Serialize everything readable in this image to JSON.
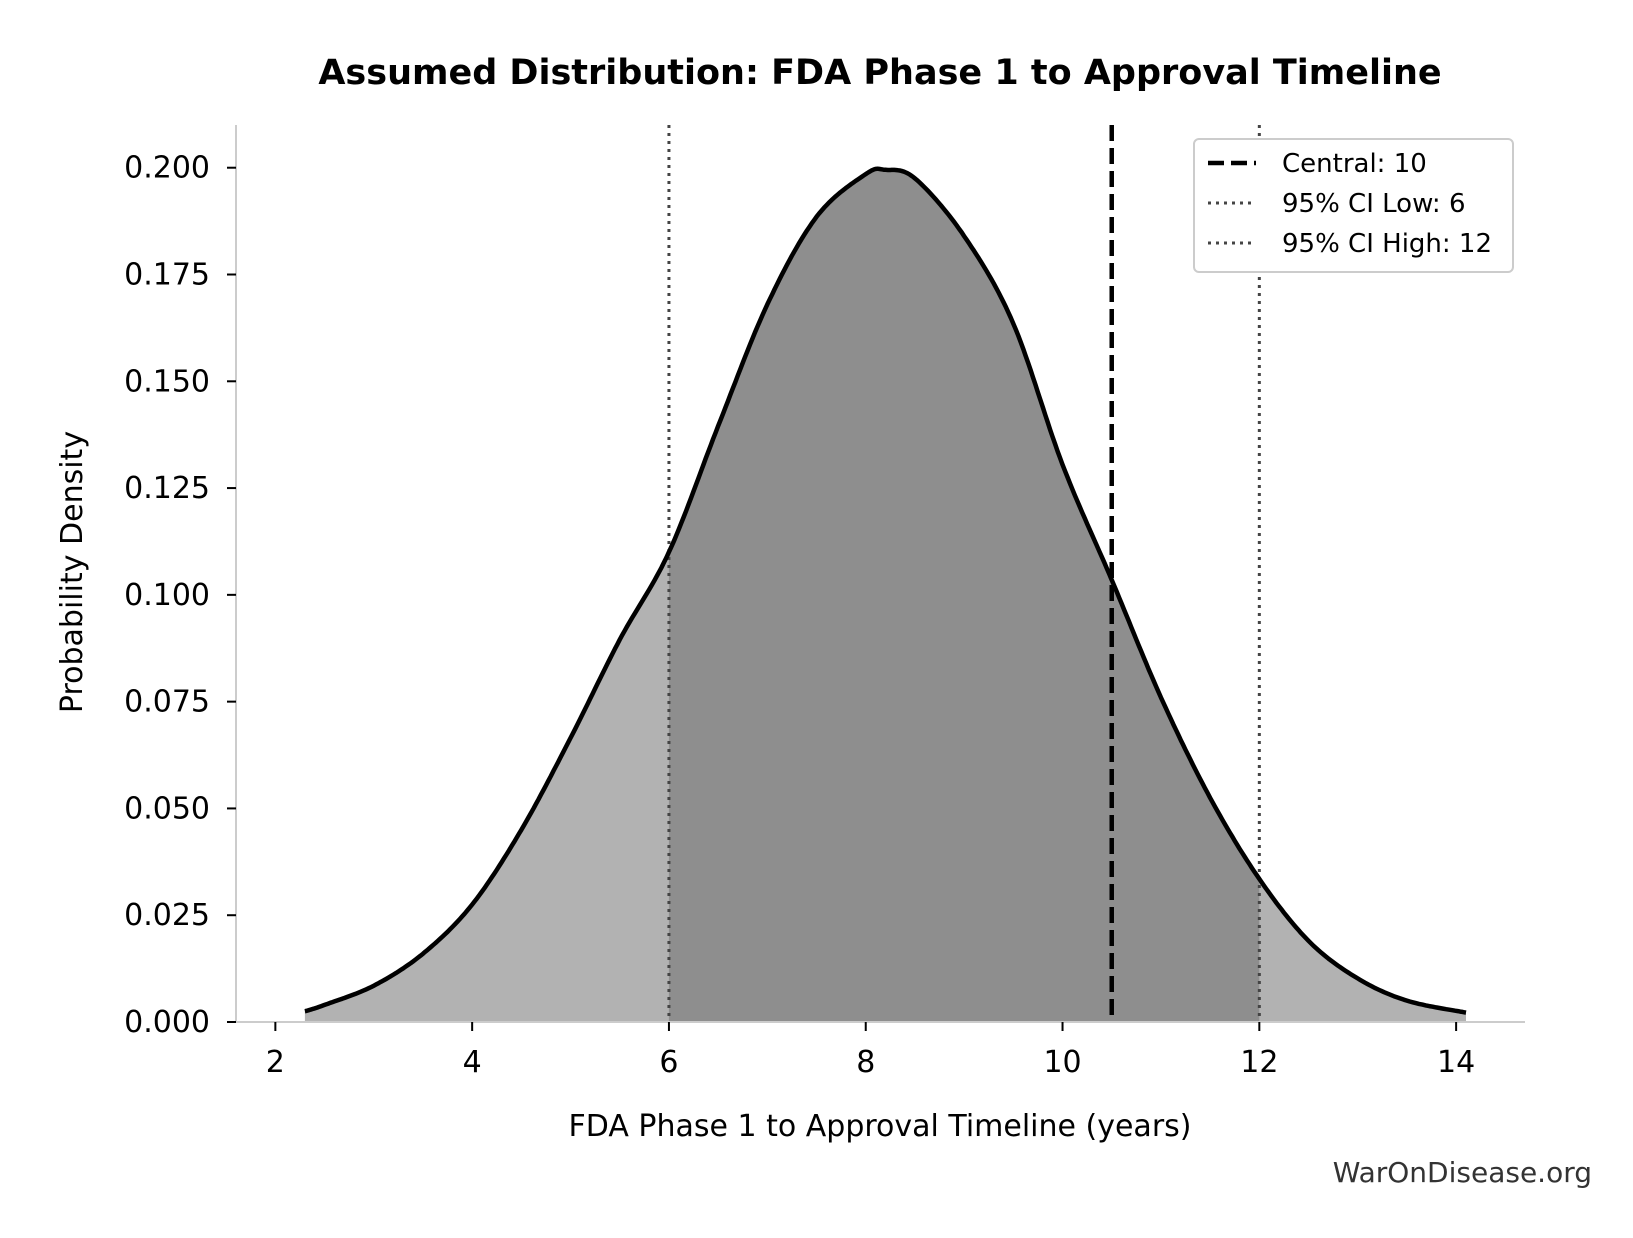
{
  "chart_data": {
    "type": "area",
    "title": "Assumed Distribution: FDA Phase 1 to Approval Timeline",
    "xlabel": "FDA Phase 1 to Approval Timeline (years)",
    "ylabel": "Probability Density",
    "xlim": [
      1.6,
      14.7
    ],
    "ylim": [
      0,
      0.21
    ],
    "x_ticks": [
      2,
      4,
      6,
      8,
      10,
      12,
      14
    ],
    "x_tick_labels": [
      "2",
      "4",
      "6",
      "8",
      "10",
      "12",
      "14"
    ],
    "y_ticks": [
      0,
      0.025,
      0.05,
      0.075,
      0.1,
      0.125,
      0.15,
      0.175,
      0.2
    ],
    "y_tick_labels": [
      "0.000",
      "0.025",
      "0.050",
      "0.075",
      "0.100",
      "0.125",
      "0.150",
      "0.175",
      "0.200"
    ],
    "grid": false,
    "legend_position": "top-right",
    "series": [
      {
        "x": [
          2.3,
          2.5,
          3.0,
          3.5,
          4.0,
          4.5,
          5.0,
          5.5,
          6.0,
          6.5,
          7.0,
          7.5,
          8.0,
          8.2,
          8.5,
          9.0,
          9.5,
          10.0,
          10.5,
          11.0,
          11.5,
          12.0,
          12.5,
          13.0,
          13.5,
          14.1
        ],
        "values": [
          0.0025,
          0.004,
          0.0085,
          0.016,
          0.0275,
          0.045,
          0.0665,
          0.0895,
          0.11,
          0.1395,
          0.168,
          0.1885,
          0.1985,
          0.1995,
          0.1975,
          0.184,
          0.1635,
          0.1305,
          0.1035,
          0.076,
          0.0525,
          0.0335,
          0.019,
          0.0102,
          0.005,
          0.0022
        ]
      }
    ],
    "shaded_interval": [
      6,
      12
    ],
    "reference_lines": [
      {
        "label": "Central: 10",
        "x": 10.5,
        "style": "dashed",
        "color": "#000000"
      },
      {
        "label": "95% CI Low: 6",
        "x": 6,
        "style": "dotted",
        "color": "#444444"
      },
      {
        "label": "95% CI High: 12",
        "x": 12,
        "style": "dotted",
        "color": "#444444"
      }
    ],
    "colors": {
      "curve": "#000000",
      "fill_inner": "#8e8e8e",
      "fill_outer": "#b2b2b2",
      "axis": "#cccccc"
    }
  },
  "watermark": "WarOnDisease.org"
}
